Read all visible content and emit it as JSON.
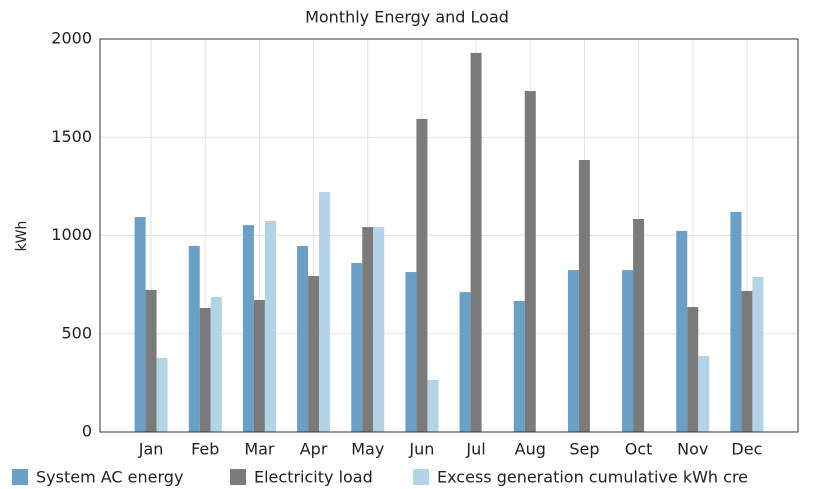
{
  "chart_data": {
    "type": "bar",
    "title": "Monthly Energy and Load",
    "y_label": "kWh",
    "categories": [
      "Jan",
      "Feb",
      "Mar",
      "Apr",
      "May",
      "Jun",
      "Jul",
      "Aug",
      "Sep",
      "Oct",
      "Nov",
      "Dec"
    ],
    "series": [
      {
        "name": "System AC energy",
        "color": "#6a9fc6",
        "values": [
          1094,
          947,
          1053,
          947,
          860,
          814,
          712,
          667,
          824,
          824,
          1023,
          1120
        ]
      },
      {
        "name": "Electricity load",
        "color": "#7b7b7b",
        "values": [
          723,
          631,
          672,
          794,
          1043,
          1593,
          1929,
          1735,
          1384,
          1084,
          636,
          718
        ]
      },
      {
        "name": "Excess generation cumulative kWh cre",
        "color": "#b3d3e6",
        "values": [
          377,
          687,
          1074,
          1221,
          1043,
          265,
          0,
          0,
          0,
          0,
          387,
          789
        ]
      }
    ],
    "ylim": [
      0,
      2000
    ],
    "yticks": [
      0,
      500,
      1000,
      1500,
      2000
    ],
    "grid": true,
    "legend": "bottom"
  }
}
